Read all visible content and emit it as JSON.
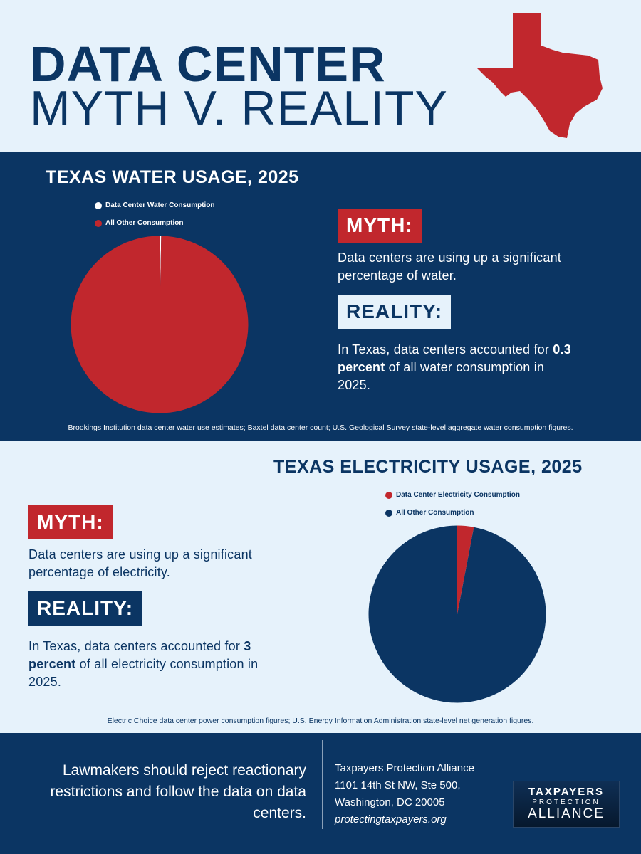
{
  "header": {
    "title_line1": "DATA CENTER",
    "title_line2": "MYTH V. REALITY",
    "state_icon": "texas-state-shape",
    "colors": {
      "navy": "#0b3563",
      "red": "#c1272d",
      "light": "#e6f2fb"
    }
  },
  "water": {
    "title": "TEXAS WATER USAGE, 2025",
    "myth_label": "MYTH:",
    "myth_text": "Data centers are using up a significant percentage of water.",
    "reality_label": "REALITY:",
    "reality_pre": "In Texas, data centers accounted for",
    "reality_bold": "0.3 percent",
    "reality_post": "of all water consumption in 2025.",
    "source": "Brookings Institution data center water use estimates; Baxtel data center count; U.S. Geological Survey state-level aggregate water consumption figures."
  },
  "electricity": {
    "title": "TEXAS ELECTRICITY USAGE, 2025",
    "myth_label": "MYTH:",
    "myth_text": "Data centers are using up a significant percentage of electricity.",
    "reality_label": "REALITY:",
    "reality_pre": "In Texas, data centers accounted for",
    "reality_bold": "3 percent",
    "reality_post": "of all electricity consumption in 2025.",
    "source": "Electric Choice data center power consumption figures; U.S. Energy Information Administration state-level net generation figures."
  },
  "chart_data": [
    {
      "type": "pie",
      "title": "TEXAS WATER USAGE, 2025",
      "categories": [
        "Data Center Water Consumption",
        "All Other Consumption"
      ],
      "values": [
        0.3,
        99.7
      ],
      "colors": [
        "#ffffff",
        "#c1272d"
      ],
      "legend": "top"
    },
    {
      "type": "pie",
      "title": "TEXAS ELECTRICITY USAGE, 2025",
      "categories": [
        "Data Center Electricity Consumption",
        "All Other Consumption"
      ],
      "values": [
        3,
        97
      ],
      "colors": [
        "#c1272d",
        "#0b3563"
      ],
      "legend": "top"
    }
  ],
  "footer": {
    "cta": "Lawmakers should reject reactionary restrictions and follow the data on data centers.",
    "org_name": "Taxpayers Protection Alliance",
    "address1": "1101 14th St NW, Ste 500,",
    "address2": "Washington, DC 20005",
    "website": "protectingtaxpayers.org",
    "logo_line1": "TAXPAYERS",
    "logo_line2": "PROTECTION",
    "logo_line3": "ALLIANCE"
  }
}
